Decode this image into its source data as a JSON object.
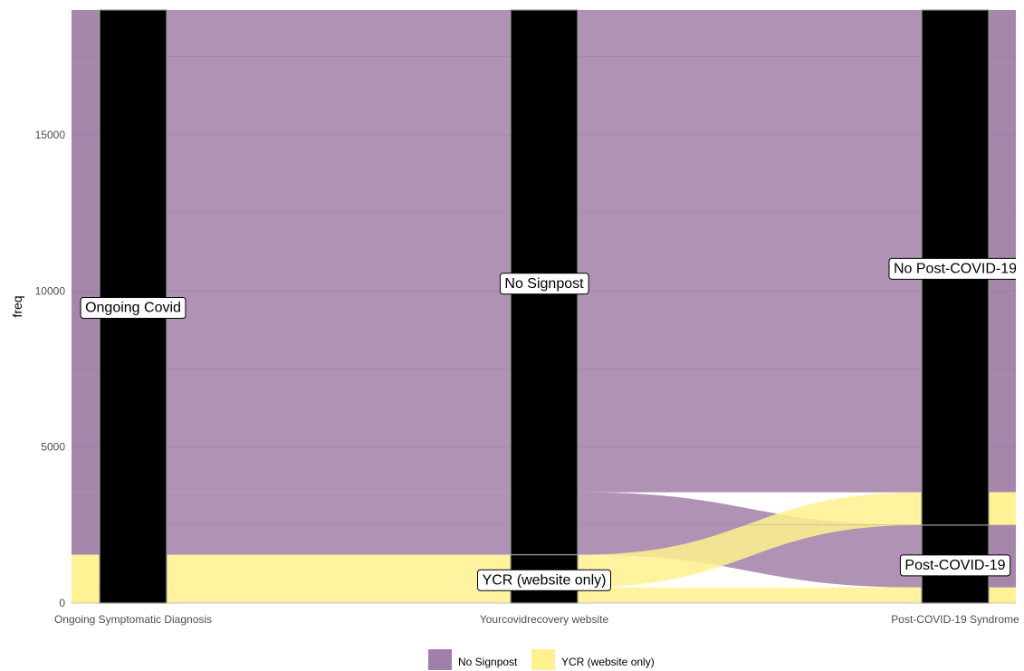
{
  "chart_data": {
    "type": "alluvial",
    "title": "",
    "xlabel": "",
    "ylabel": "freq",
    "ylim": [
      0,
      19000
    ],
    "y_ticks": [
      0,
      5000,
      10000,
      15000
    ],
    "axes": [
      "Ongoing Symptomatic Diagnosis",
      "Yourcovidrecovery website",
      "Post-COVID-19 Syndrome"
    ],
    "legend": {
      "position": "bottom",
      "entries": [
        {
          "name": "No Signpost",
          "color": "#A27FA8"
        },
        {
          "name": "YCR (website only)",
          "color": "#FFF18F"
        }
      ]
    },
    "strata": [
      {
        "axis": 0,
        "label": "Ongoing Covid",
        "from": 0,
        "to": 19000
      },
      {
        "axis": 1,
        "label": "YCR (website only)",
        "from": 0,
        "to": 1550
      },
      {
        "axis": 1,
        "label": "No Signpost",
        "from": 1550,
        "to": 19000
      },
      {
        "axis": 2,
        "label": "Post-COVID-19",
        "from": 0,
        "to": 2500
      },
      {
        "axis": 2,
        "label": "No Post-COVID-19",
        "from": 2500,
        "to": 19000
      }
    ],
    "flows": [
      {
        "group": "YCR (website only)",
        "value": 500,
        "path": [
          "Ongoing Covid",
          "YCR (website only)",
          "Post-COVID-19"
        ]
      },
      {
        "group": "YCR (website only)",
        "value": 1050,
        "path": [
          "Ongoing Covid",
          "YCR (website only)",
          "No Post-COVID-19"
        ]
      },
      {
        "group": "No Signpost",
        "value": 2000,
        "path": [
          "Ongoing Covid",
          "No Signpost",
          "Post-COVID-19"
        ]
      },
      {
        "group": "No Signpost",
        "value": 15450,
        "path": [
          "Ongoing Covid",
          "No Signpost",
          "No Post-COVID-19"
        ]
      }
    ]
  },
  "colors": {
    "no_signpost": "#A27FA8",
    "ycr": "#FFF18F",
    "stratum_fill": "#000000",
    "grid": "#8E7494"
  }
}
